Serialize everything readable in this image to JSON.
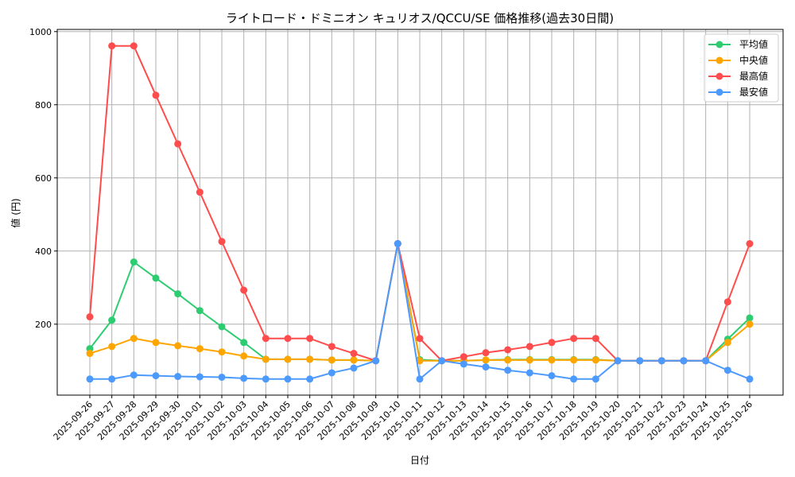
{
  "chart_data": {
    "type": "line",
    "title": "ライトロード・ドミニオン キュリオス/QCCU/SE 価格推移(過去30日間)",
    "xlabel": "日付",
    "ylabel": "値 (円)",
    "ylim": [
      6,
      1006
    ],
    "yticks": [
      200,
      400,
      600,
      800,
      1000
    ],
    "grid": true,
    "legend_position": "upper right",
    "x": [
      "2025-09-26",
      "2025-09-27",
      "2025-09-28",
      "2025-09-29",
      "2025-09-30",
      "2025-10-01",
      "2025-10-02",
      "2025-10-03",
      "2025-10-04",
      "2025-10-05",
      "2025-10-06",
      "2025-10-07",
      "2025-10-08",
      "2025-10-09",
      "2025-10-10",
      "2025-10-11",
      "2025-10-12",
      "2025-10-13",
      "2025-10-14",
      "2025-10-15",
      "2025-10-16",
      "2025-10-17",
      "2025-10-18",
      "2025-10-19",
      "2025-10-20",
      "2025-10-21",
      "2025-10-22",
      "2025-10-23",
      "2025-10-24",
      "2025-10-25",
      "2025-10-26"
    ],
    "series": [
      {
        "name": "平均値",
        "color": "#2ecc71",
        "values": [
          133,
          211,
          370,
          326,
          283,
          237,
          193,
          150,
          104,
          104,
          104,
          102,
          102,
          100,
          420,
          103,
          100,
          100,
          102,
          103,
          103,
          103,
          103,
          103,
          100,
          100,
          100,
          100,
          100,
          159,
          217
        ]
      },
      {
        "name": "中央値",
        "color": "#ffa500",
        "values": [
          120,
          139,
          161,
          150,
          141,
          133,
          124,
          113,
          104,
          104,
          104,
          102,
          102,
          100,
          420,
          100,
          100,
          100,
          102,
          102,
          102,
          102,
          102,
          102,
          100,
          100,
          100,
          100,
          100,
          150,
          200
        ]
      },
      {
        "name": "最高値",
        "color": "#ff4c4c",
        "values": [
          220,
          961,
          961,
          826,
          693,
          561,
          426,
          293,
          161,
          161,
          161,
          139,
          120,
          100,
          420,
          161,
          100,
          111,
          122,
          130,
          139,
          150,
          161,
          161,
          100,
          100,
          100,
          100,
          100,
          261,
          420
        ]
      },
      {
        "name": "最安値",
        "color": "#4d9aff",
        "values": [
          50,
          50,
          61,
          59,
          57,
          56,
          55,
          52,
          50,
          50,
          50,
          67,
          80,
          100,
          420,
          50,
          100,
          91,
          83,
          74,
          67,
          59,
          50,
          50,
          100,
          100,
          100,
          100,
          100,
          74,
          50
        ]
      }
    ]
  }
}
